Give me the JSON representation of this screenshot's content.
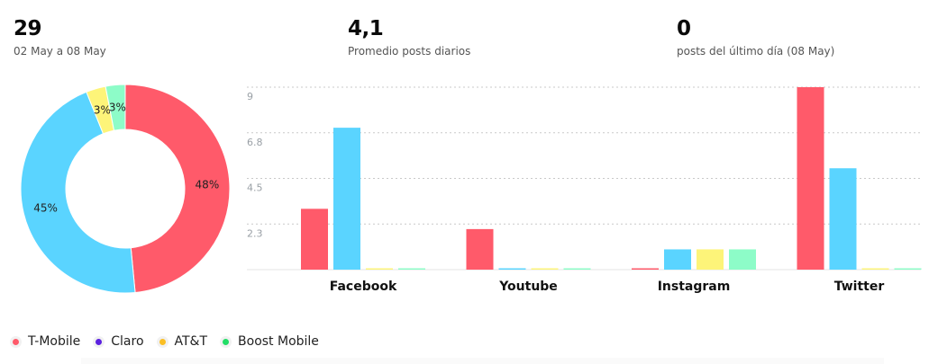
{
  "stats": [
    {
      "value": "29",
      "label": "02 May a 08 May"
    },
    {
      "value": "4,1",
      "label": "Promedio posts diarios"
    },
    {
      "value": "0",
      "label": "posts del último día (08 May)"
    }
  ],
  "colors": {
    "T-Mobile": "#ff5a6a",
    "Claro": "#5ad4ff",
    "AT&T": "#fdf479",
    "Boost Mobile": "#8dfcc8"
  },
  "chart_data": [
    {
      "type": "pie",
      "labels": [
        "T-Mobile",
        "Claro",
        "AT&T",
        "Boost Mobile"
      ],
      "values": [
        48,
        45,
        3,
        3
      ],
      "display_labels": [
        "48%",
        "45%",
        "3%",
        "3%"
      ]
    },
    {
      "type": "bar",
      "categories": [
        "Facebook",
        "Youtube",
        "Instagram",
        "Twitter"
      ],
      "ylim": [
        0,
        9
      ],
      "yticks": [
        "2.3",
        "4.5",
        "6.8",
        "9"
      ],
      "ytick_values": [
        2.25,
        4.5,
        6.75,
        9
      ],
      "series": [
        {
          "name": "T-Mobile",
          "values": [
            3,
            2,
            0,
            9
          ]
        },
        {
          "name": "Claro",
          "values": [
            7,
            0,
            1,
            5
          ]
        },
        {
          "name": "AT&T",
          "values": [
            0,
            0,
            1,
            0
          ]
        },
        {
          "name": "Boost Mobile",
          "values": [
            0,
            0,
            1,
            0
          ]
        }
      ]
    }
  ],
  "legend": [
    {
      "label": "T-Mobile",
      "color": "#ff5a6a"
    },
    {
      "label": "Claro",
      "color": "#5b21e0"
    },
    {
      "label": "AT&T",
      "color": "#fbbf24"
    },
    {
      "label": "Boost Mobile",
      "color": "#22dd66"
    }
  ]
}
